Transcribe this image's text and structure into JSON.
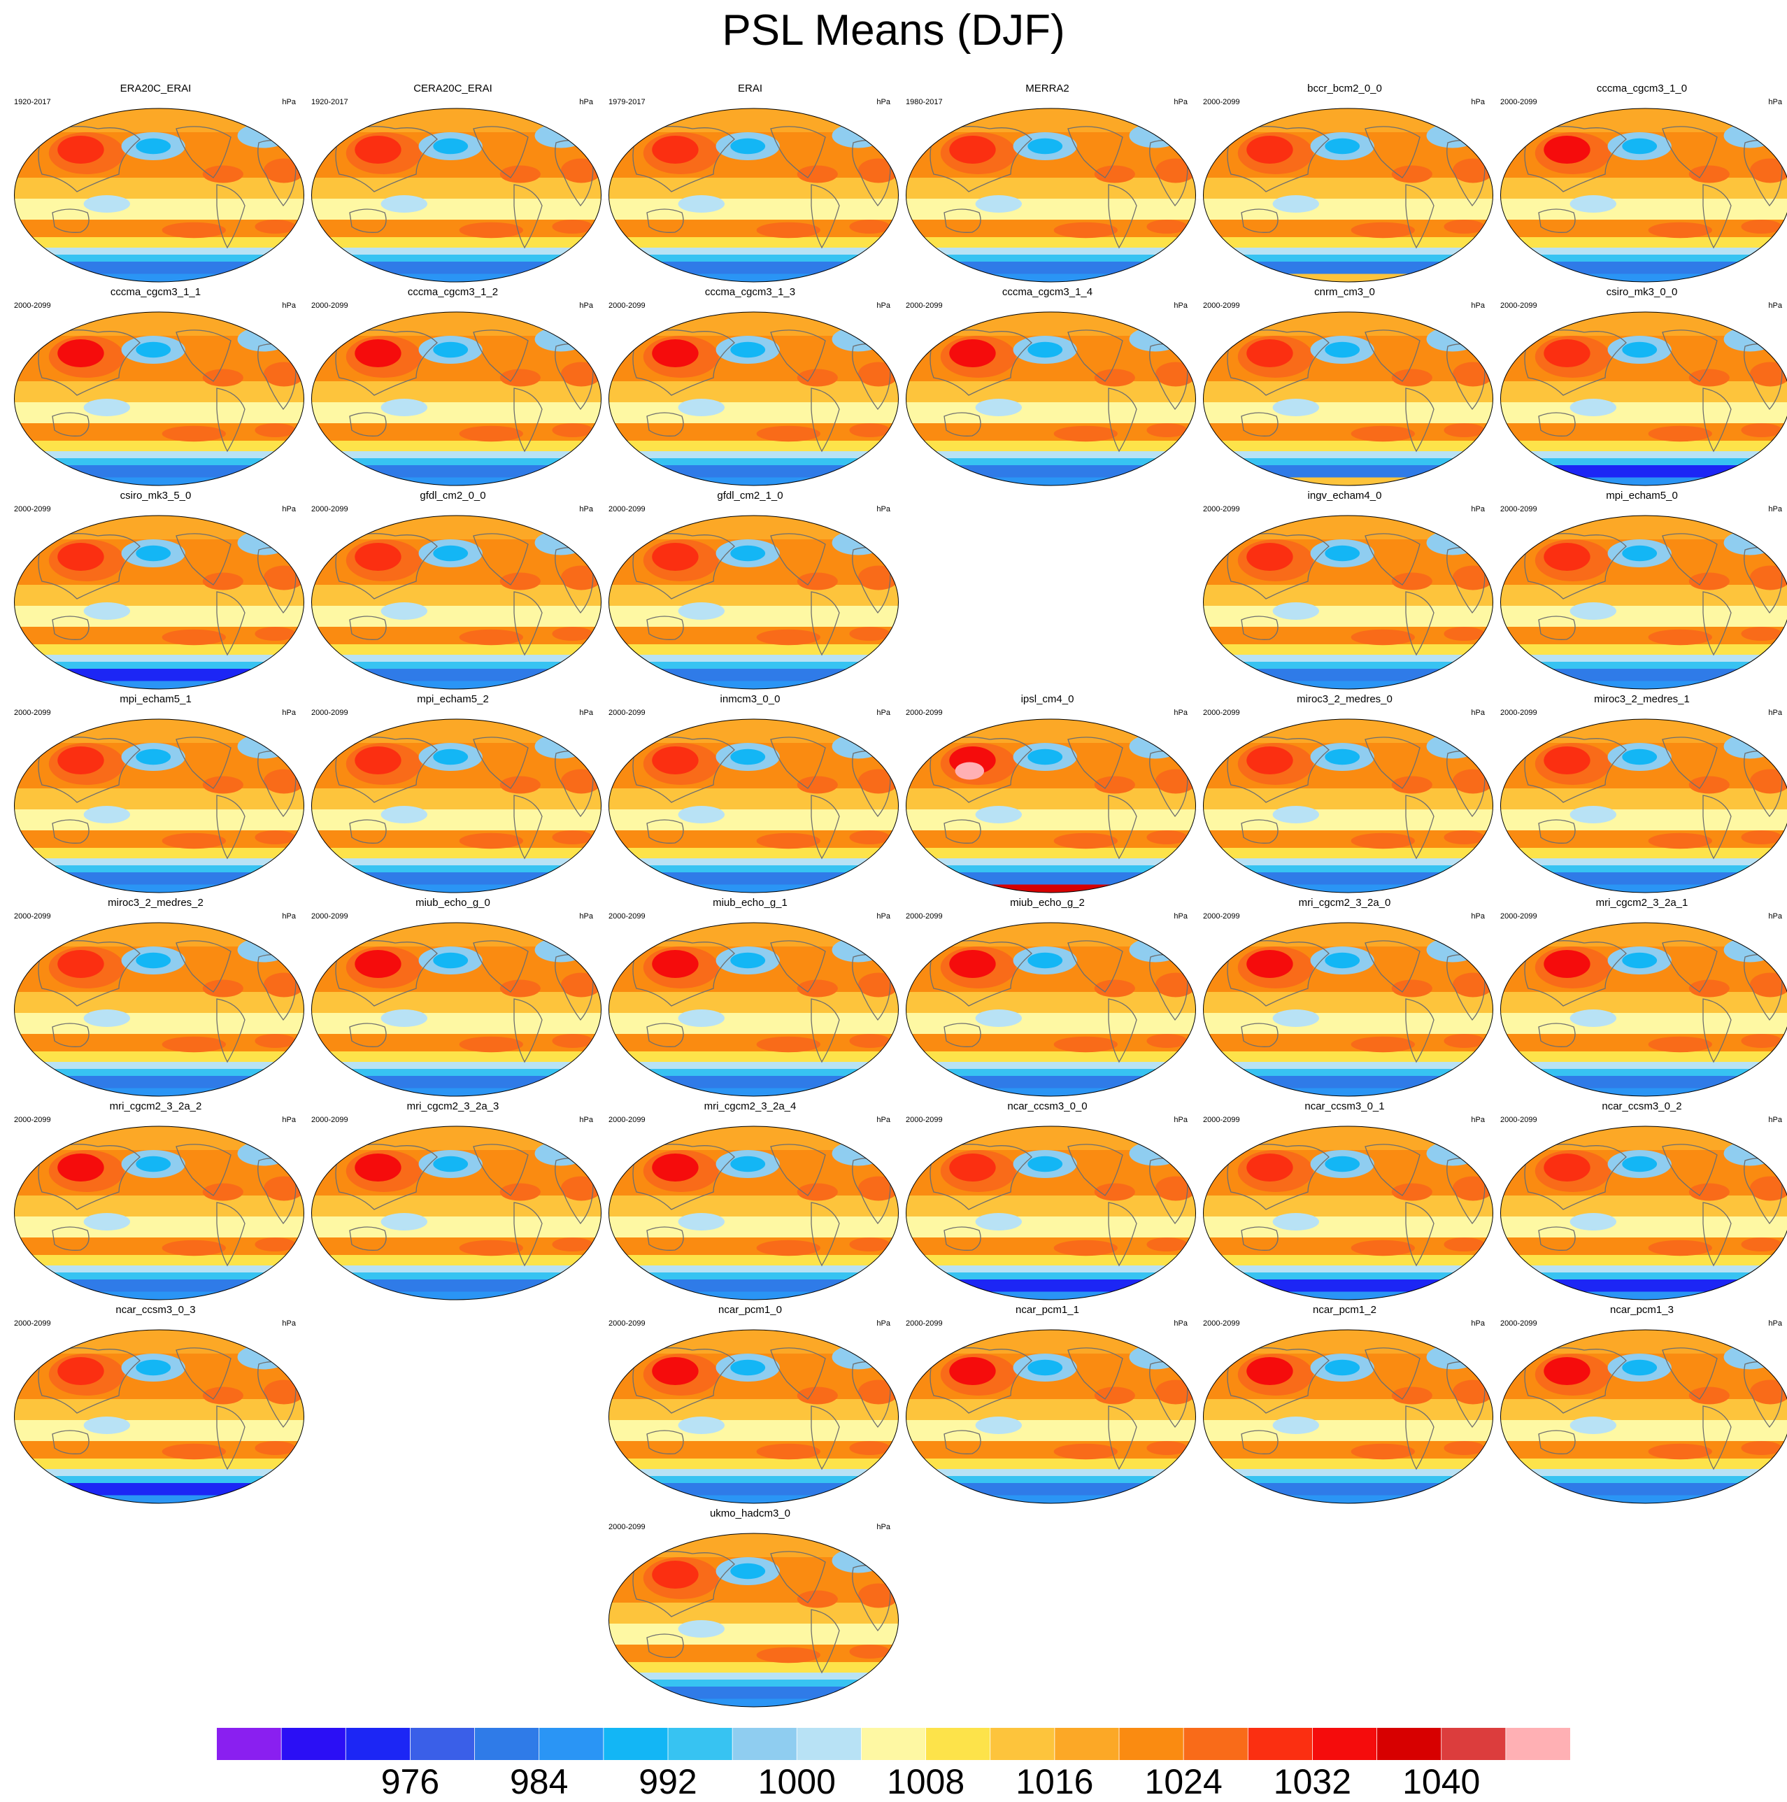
{
  "figure": {
    "title": "PSL Means (DJF)",
    "units": "hPa"
  },
  "chart_data": {
    "type": "heatmap",
    "title": "PSL Means (DJF)",
    "variable": "PSL",
    "season": "DJF",
    "units": "hPa",
    "projection": "robinson",
    "panels": [
      {
        "name": "ERA20C_ERAI",
        "years": "1920-2017",
        "row": 0,
        "col": 0,
        "tint": "normal"
      },
      {
        "name": "CERA20C_ERAI",
        "years": "1920-2017",
        "row": 0,
        "col": 1,
        "tint": "normal"
      },
      {
        "name": "ERAI",
        "years": "1979-2017",
        "row": 0,
        "col": 2,
        "tint": "normal"
      },
      {
        "name": "MERRA2",
        "years": "1980-2017",
        "row": 0,
        "col": 3,
        "tint": "normal"
      },
      {
        "name": "bccr_bcm2_0_0",
        "years": "2000-2099",
        "row": 0,
        "col": 4,
        "tint": "warm-south"
      },
      {
        "name": "cccma_cgcm3_1_0",
        "years": "2000-2099",
        "row": 0,
        "col": 5,
        "tint": "strong"
      },
      {
        "name": "cccma_cgcm3_1_1",
        "years": "2000-2099",
        "row": 1,
        "col": 0,
        "tint": "strong"
      },
      {
        "name": "cccma_cgcm3_1_2",
        "years": "2000-2099",
        "row": 1,
        "col": 1,
        "tint": "strong"
      },
      {
        "name": "cccma_cgcm3_1_3",
        "years": "2000-2099",
        "row": 1,
        "col": 2,
        "tint": "strong"
      },
      {
        "name": "cccma_cgcm3_1_4",
        "years": "2000-2099",
        "row": 1,
        "col": 3,
        "tint": "strong"
      },
      {
        "name": "cnrm_cm3_0",
        "years": "2000-2099",
        "row": 1,
        "col": 4,
        "tint": "warm-south"
      },
      {
        "name": "csiro_mk3_0_0",
        "years": "2000-2099",
        "row": 1,
        "col": 5,
        "tint": "deep-south"
      },
      {
        "name": "csiro_mk3_5_0",
        "years": "2000-2099",
        "row": 2,
        "col": 0,
        "tint": "deep-south"
      },
      {
        "name": "gfdl_cm2_0_0",
        "years": "2000-2099",
        "row": 2,
        "col": 1,
        "tint": "normal"
      },
      {
        "name": "gfdl_cm2_1_0",
        "years": "2000-2099",
        "row": 2,
        "col": 2,
        "tint": "normal"
      },
      {
        "name": "ingv_echam4_0",
        "years": "2000-2099",
        "row": 2,
        "col": 4,
        "tint": "normal"
      },
      {
        "name": "mpi_echam5_0",
        "years": "2000-2099",
        "row": 2,
        "col": 5,
        "tint": "normal"
      },
      {
        "name": "mpi_echam5_1",
        "years": "2000-2099",
        "row": 3,
        "col": 0,
        "tint": "normal"
      },
      {
        "name": "mpi_echam5_2",
        "years": "2000-2099",
        "row": 3,
        "col": 1,
        "tint": "normal"
      },
      {
        "name": "inmcm3_0_0",
        "years": "2000-2099",
        "row": 3,
        "col": 2,
        "tint": "normal"
      },
      {
        "name": "ipsl_cm4_0",
        "years": "2000-2099",
        "row": 3,
        "col": 3,
        "tint": "extreme"
      },
      {
        "name": "miroc3_2_medres_0",
        "years": "2000-2099",
        "row": 3,
        "col": 4,
        "tint": "normal"
      },
      {
        "name": "miroc3_2_medres_1",
        "years": "2000-2099",
        "row": 3,
        "col": 5,
        "tint": "normal"
      },
      {
        "name": "miroc3_2_medres_2",
        "years": "2000-2099",
        "row": 4,
        "col": 0,
        "tint": "normal"
      },
      {
        "name": "miub_echo_g_0",
        "years": "2000-2099",
        "row": 4,
        "col": 1,
        "tint": "strong"
      },
      {
        "name": "miub_echo_g_1",
        "years": "2000-2099",
        "row": 4,
        "col": 2,
        "tint": "strong"
      },
      {
        "name": "miub_echo_g_2",
        "years": "2000-2099",
        "row": 4,
        "col": 3,
        "tint": "strong"
      },
      {
        "name": "mri_cgcm2_3_2a_0",
        "years": "2000-2099",
        "row": 4,
        "col": 4,
        "tint": "strong"
      },
      {
        "name": "mri_cgcm2_3_2a_1",
        "years": "2000-2099",
        "row": 4,
        "col": 5,
        "tint": "strong"
      },
      {
        "name": "mri_cgcm2_3_2a_2",
        "years": "2000-2099",
        "row": 5,
        "col": 0,
        "tint": "strong"
      },
      {
        "name": "mri_cgcm2_3_2a_3",
        "years": "2000-2099",
        "row": 5,
        "col": 1,
        "tint": "strong"
      },
      {
        "name": "mri_cgcm2_3_2a_4",
        "years": "2000-2099",
        "row": 5,
        "col": 2,
        "tint": "strong"
      },
      {
        "name": "ncar_ccsm3_0_0",
        "years": "2000-2099",
        "row": 5,
        "col": 3,
        "tint": "deep-south"
      },
      {
        "name": "ncar_ccsm3_0_1",
        "years": "2000-2099",
        "row": 5,
        "col": 4,
        "tint": "deep-south"
      },
      {
        "name": "ncar_ccsm3_0_2",
        "years": "2000-2099",
        "row": 5,
        "col": 5,
        "tint": "deep-south"
      },
      {
        "name": "ncar_ccsm3_0_3",
        "years": "2000-2099",
        "row": 6,
        "col": 0,
        "tint": "deep-south"
      },
      {
        "name": "ncar_pcm1_0",
        "years": "2000-2099",
        "row": 6,
        "col": 2,
        "tint": "strong"
      },
      {
        "name": "ncar_pcm1_1",
        "years": "2000-2099",
        "row": 6,
        "col": 3,
        "tint": "strong"
      },
      {
        "name": "ncar_pcm1_2",
        "years": "2000-2099",
        "row": 6,
        "col": 4,
        "tint": "strong"
      },
      {
        "name": "ncar_pcm1_3",
        "years": "2000-2099",
        "row": 6,
        "col": 5,
        "tint": "strong"
      },
      {
        "name": "ukmo_hadcm3_0",
        "years": "2000-2099",
        "row": 7,
        "col": 2,
        "tint": "normal"
      }
    ],
    "colorbar": {
      "levels": [
        968,
        972,
        976,
        980,
        984,
        988,
        992,
        996,
        1000,
        1004,
        1008,
        1012,
        1016,
        1020,
        1024,
        1028,
        1032,
        1036,
        1040,
        1044
      ],
      "colors": [
        "#8a1ff0",
        "#2b0ff5",
        "#1c26f5",
        "#3a5fe8",
        "#2f7be8",
        "#2a95f5",
        "#13b6f5",
        "#37c3f2",
        "#8fcdf0",
        "#b8e2f5",
        "#fef8a3",
        "#fde34a",
        "#fdc43c",
        "#fca826",
        "#fa8b11",
        "#f96b19",
        "#fb2f11",
        "#f50c0c",
        "#d70000",
        "#dc3d3d",
        "#ffb0b4"
      ],
      "tick_labels": [
        "976",
        "984",
        "992",
        "1000",
        "1008",
        "1016",
        "1024",
        "1032",
        "1040"
      ],
      "tick_values": [
        976,
        984,
        992,
        1000,
        1008,
        1016,
        1024,
        1032,
        1040
      ]
    }
  }
}
